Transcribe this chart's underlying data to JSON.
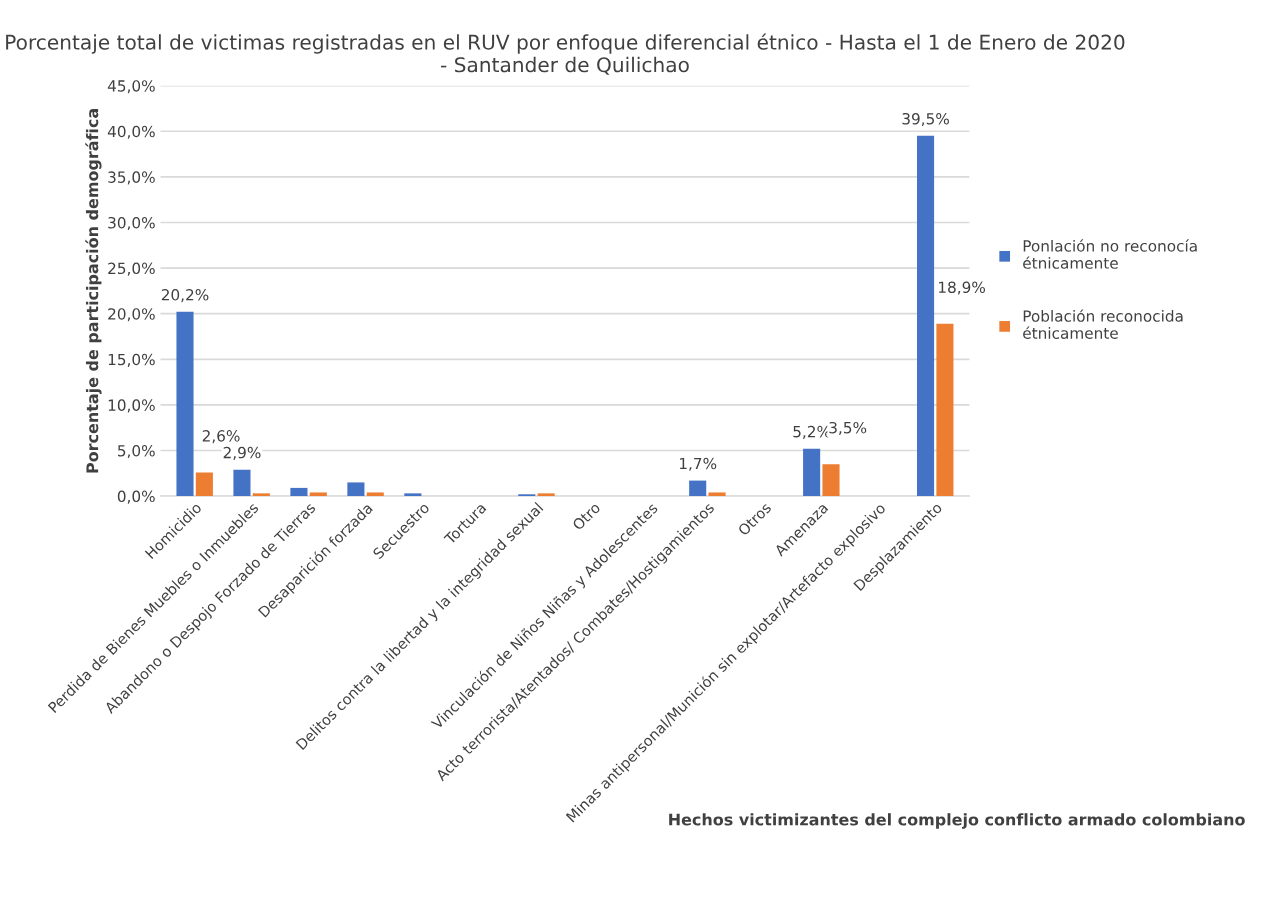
{
  "chart_data": {
    "type": "bar",
    "title": "Porcentaje total de victimas registradas en el RUV por enfoque diferencial étnico - Hasta el 1 de Enero de 2020 - Santander de Quilichao",
    "xlabel": "Hechos victimizantes del complejo conflicto armado colombiano",
    "ylabel": "Porcentaje de participación demográfica",
    "categories": [
      "Homicidio",
      "Perdida de Bienes Muebles o Inmuebles",
      "Abandono o Despojo Forzado de Tierras",
      "Desaparición forzada",
      "Secuestro",
      "Tortura",
      "Delitos contra la libertad y la integridad sexual",
      "Otro",
      "Vinculación de Niños Niñas y Adolescentes",
      "Acto terrorista/Atentados/ Combates/Hostigamientos",
      "Otros",
      "Amenaza",
      "Minas antipersonal/Munición sin explotar/Artefacto explosivo",
      "Desplazamiento"
    ],
    "series": [
      {
        "name": "Ponlación no reconocía étnicamente",
        "color": "#4472c4",
        "values": [
          20.2,
          2.9,
          0.9,
          1.5,
          0.3,
          0,
          0.2,
          0,
          0,
          1.7,
          0,
          5.2,
          0,
          39.5
        ],
        "value_labels": [
          "20,2%",
          "2,9%",
          null,
          null,
          null,
          null,
          null,
          null,
          null,
          "1,7%",
          null,
          "5,2%",
          null,
          "39,5%"
        ]
      },
      {
        "name": "Población reconocida étnicamente",
        "color": "#ed7d31",
        "values": [
          2.6,
          0.3,
          0.4,
          0.4,
          0,
          0,
          0.3,
          0,
          0,
          0.4,
          0,
          3.5,
          0,
          18.9
        ],
        "value_labels": [
          "2,6%",
          null,
          null,
          null,
          null,
          null,
          null,
          null,
          null,
          null,
          null,
          "3,5%",
          null,
          "18,9%"
        ]
      }
    ],
    "ylim": [
      0,
      45
    ],
    "yticks": [
      {
        "value": 0,
        "label": "0,0%"
      },
      {
        "value": 5,
        "label": "5,0%"
      },
      {
        "value": 10,
        "label": "10,0%"
      },
      {
        "value": 15,
        "label": "15,0%"
      },
      {
        "value": 20,
        "label": "20,0%"
      },
      {
        "value": 25,
        "label": "25,0%"
      },
      {
        "value": 30,
        "label": "30,0%"
      },
      {
        "value": 35,
        "label": "35,0%"
      },
      {
        "value": 40,
        "label": "40,0%"
      },
      {
        "value": 45,
        "label": "45,0%"
      }
    ],
    "grid": "y",
    "legend": "right"
  }
}
